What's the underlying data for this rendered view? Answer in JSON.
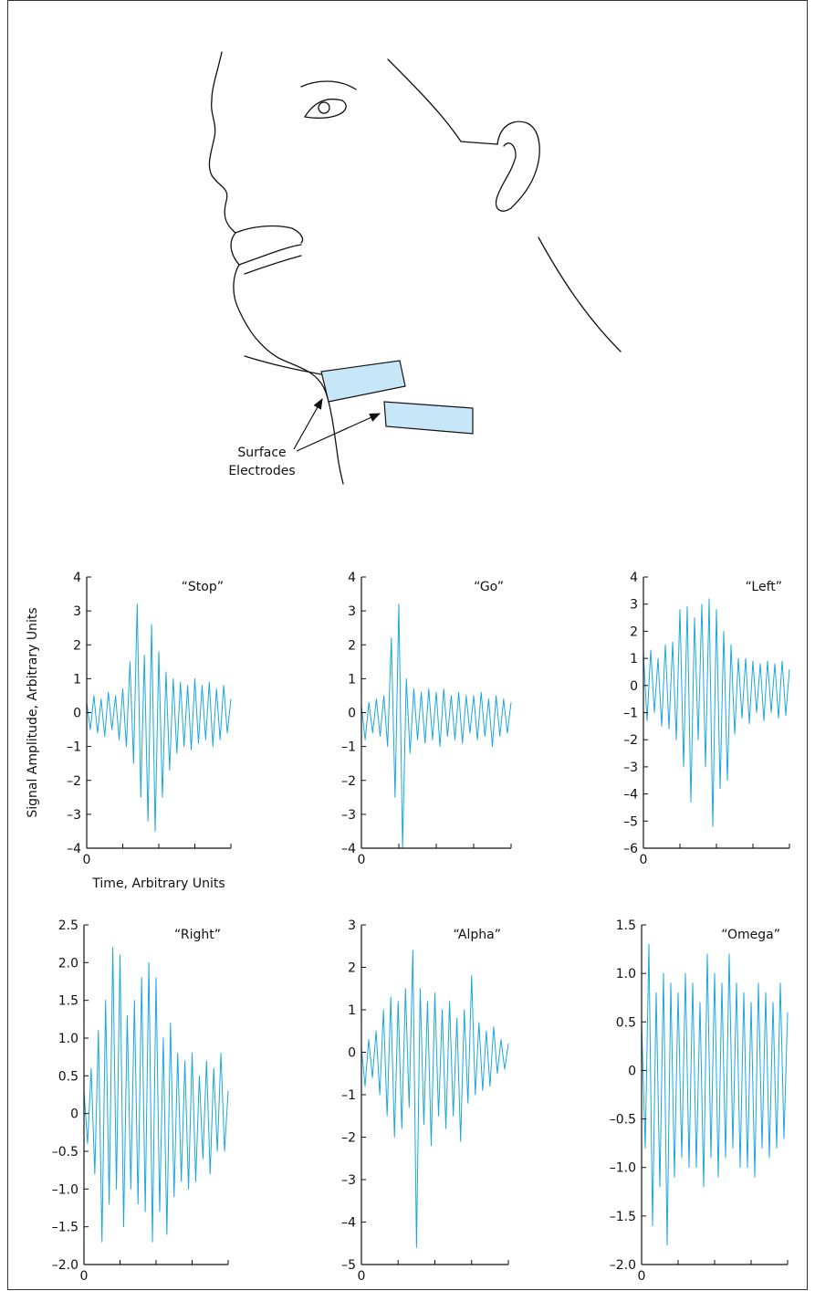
{
  "diagram": {
    "label_lines": [
      "Surface",
      "Electrodes"
    ]
  },
  "chart_data": [
    {
      "type": "line",
      "title": "“Stop”",
      "ylabel": "Signal Amplitude, Arbitrary Units",
      "xlabel": "Time, Arbitrary Units",
      "color": "#1aa7e0",
      "xlim": [
        0,
        4
      ],
      "xticks": [
        0,
        {
          "value": 1,
          "label": null
        },
        {
          "value": 2,
          "label": null
        },
        {
          "value": 3,
          "label": null
        },
        {
          "value": 4,
          "label": null
        }
      ],
      "ylim": [
        -4,
        4
      ],
      "yticks": [
        {
          "value": -4,
          "label": "–4"
        },
        {
          "value": -3,
          "label": "–3"
        },
        {
          "value": -2,
          "label": "–2"
        },
        {
          "value": -1,
          "label": "–1"
        },
        0,
        1,
        2,
        3,
        4
      ],
      "x": [
        0,
        0.1,
        0.2,
        0.3,
        0.4,
        0.5,
        0.6,
        0.7,
        0.8,
        0.9,
        1,
        1.1,
        1.2,
        1.3,
        1.4,
        1.5,
        1.6,
        1.7,
        1.8,
        1.9,
        2,
        2.1,
        2.2,
        2.3,
        2.4,
        2.5,
        2.6,
        2.7,
        2.8,
        2.9,
        3,
        3.1,
        3.2,
        3.3,
        3.4,
        3.5,
        3.6,
        3.7,
        3.8,
        3.9,
        4
      ],
      "values": [
        0.3,
        -0.5,
        0.5,
        -0.6,
        0.4,
        -0.7,
        0.6,
        -0.5,
        0.5,
        -0.8,
        0.7,
        -1.0,
        1.5,
        -1.5,
        3.2,
        -2.5,
        1.7,
        -3.2,
        2.6,
        -3.5,
        1.8,
        -2.5,
        1.2,
        -1.7,
        1.0,
        -1.2,
        0.9,
        -1.0,
        0.8,
        -1.1,
        1.0,
        -0.9,
        0.8,
        -0.8,
        0.9,
        -1.0,
        0.7,
        -0.8,
        0.8,
        -0.6,
        0.4
      ]
    },
    {
      "type": "line",
      "title": "“Go”",
      "color": "#1aa7e0",
      "xlim": [
        0,
        4
      ],
      "xticks": [
        0,
        {
          "value": 1,
          "label": null
        },
        {
          "value": 2,
          "label": null
        },
        {
          "value": 3,
          "label": null
        },
        {
          "value": 4,
          "label": null
        }
      ],
      "ylim": [
        -4,
        4
      ],
      "yticks": [
        {
          "value": -4,
          "label": "–4"
        },
        {
          "value": -3,
          "label": "–3"
        },
        {
          "value": -2,
          "label": "–2"
        },
        {
          "value": -1,
          "label": "–1"
        },
        0,
        1,
        2,
        3,
        4
      ],
      "x": [
        0,
        0.1,
        0.2,
        0.3,
        0.4,
        0.5,
        0.6,
        0.7,
        0.8,
        0.9,
        1,
        1.1,
        1.2,
        1.3,
        1.4,
        1.5,
        1.6,
        1.7,
        1.8,
        1.9,
        2,
        2.1,
        2.2,
        2.3,
        2.4,
        2.5,
        2.6,
        2.7,
        2.8,
        2.9,
        3,
        3.1,
        3.2,
        3.3,
        3.4,
        3.5,
        3.6,
        3.7,
        3.8,
        3.9,
        4
      ],
      "values": [
        0.2,
        -0.8,
        0.3,
        -0.6,
        0.4,
        -0.7,
        0.5,
        -1.0,
        2.2,
        -2.5,
        3.2,
        -4.0,
        1.0,
        -1.2,
        0.7,
        -0.8,
        0.6,
        -0.9,
        0.7,
        -0.8,
        0.6,
        -1.0,
        0.7,
        -0.7,
        0.5,
        -0.8,
        0.6,
        -0.9,
        0.5,
        -0.6,
        0.5,
        -0.8,
        0.6,
        -0.7,
        0.4,
        -1.0,
        0.5,
        -0.7,
        0.4,
        -0.6,
        0.3
      ]
    },
    {
      "type": "line",
      "title": "“Left”",
      "color": "#1aa7e0",
      "xlim": [
        0,
        4
      ],
      "xticks": [
        0,
        {
          "value": 1,
          "label": null
        },
        {
          "value": 2,
          "label": null
        },
        {
          "value": 3,
          "label": null
        },
        {
          "value": 4,
          "label": null
        }
      ],
      "ylim": [
        -6,
        4
      ],
      "yticks": [
        {
          "value": -6,
          "label": "–6"
        },
        {
          "value": -5,
          "label": "–5"
        },
        {
          "value": -4,
          "label": "–4"
        },
        {
          "value": -3,
          "label": "–3"
        },
        {
          "value": -2,
          "label": "–2"
        },
        {
          "value": -1,
          "label": "–1"
        },
        0,
        1,
        2,
        3,
        4
      ],
      "x": [
        0,
        0.1,
        0.2,
        0.3,
        0.4,
        0.5,
        0.6,
        0.7,
        0.8,
        0.9,
        1,
        1.1,
        1.2,
        1.3,
        1.4,
        1.5,
        1.6,
        1.7,
        1.8,
        1.9,
        2,
        2.1,
        2.2,
        2.3,
        2.4,
        2.5,
        2.6,
        2.7,
        2.8,
        2.9,
        3,
        3.1,
        3.2,
        3.3,
        3.4,
        3.5,
        3.6,
        3.7,
        3.8,
        3.9,
        4
      ],
      "values": [
        1.2,
        -1.3,
        1.3,
        -1.0,
        1.0,
        -1.5,
        1.5,
        -1.6,
        1.6,
        -2.0,
        2.8,
        -3.0,
        2.9,
        -4.3,
        2.5,
        -2.0,
        3.0,
        -3.0,
        3.2,
        -5.2,
        2.8,
        -3.8,
        2.0,
        -3.5,
        1.5,
        -1.8,
        1.0,
        -1.2,
        1.0,
        -1.4,
        0.9,
        -1.0,
        0.8,
        -1.3,
        0.9,
        -1.0,
        0.8,
        -1.2,
        0.9,
        -1.1,
        0.6
      ]
    },
    {
      "type": "line",
      "title": "“Right”",
      "color": "#1aa7e0",
      "xlim": [
        0,
        4
      ],
      "xticks": [
        0,
        {
          "value": 1,
          "label": null
        },
        {
          "value": 2,
          "label": null
        },
        {
          "value": 3,
          "label": null
        },
        {
          "value": 4,
          "label": null
        }
      ],
      "ylim": [
        -2,
        2.5
      ],
      "yticks": [
        {
          "value": -2,
          "label": "–2.0"
        },
        {
          "value": -1.5,
          "label": "–1.5"
        },
        {
          "value": -1,
          "label": "–1.0"
        },
        {
          "value": -0.5,
          "label": "–0.5"
        },
        0,
        0.5,
        {
          "value": 1,
          "label": "1.0"
        },
        1.5,
        {
          "value": 2,
          "label": "2.0"
        },
        2.5
      ],
      "x": [
        0,
        0.1,
        0.2,
        0.3,
        0.4,
        0.5,
        0.6,
        0.7,
        0.8,
        0.9,
        1,
        1.1,
        1.2,
        1.3,
        1.4,
        1.5,
        1.6,
        1.7,
        1.8,
        1.9,
        2,
        2.1,
        2.2,
        2.3,
        2.4,
        2.5,
        2.6,
        2.7,
        2.8,
        2.9,
        3,
        3.1,
        3.2,
        3.3,
        3.4,
        3.5,
        3.6,
        3.7,
        3.8,
        3.9,
        4
      ],
      "values": [
        0.3,
        -0.4,
        0.6,
        -0.8,
        1.1,
        -1.7,
        1.5,
        -1.2,
        2.2,
        -1.0,
        2.1,
        -1.5,
        1.3,
        -1.0,
        1.5,
        -1.2,
        1.8,
        -1.3,
        2.0,
        -1.7,
        1.8,
        -1.3,
        1.0,
        -1.6,
        1.2,
        -1.1,
        0.8,
        -0.9,
        0.7,
        -1.0,
        0.8,
        -0.9,
        0.5,
        -0.6,
        0.7,
        -0.8,
        0.6,
        -0.5,
        0.8,
        -0.5,
        0.3
      ]
    },
    {
      "type": "line",
      "title": "“Alpha”",
      "color": "#1aa7e0",
      "xlim": [
        0,
        4
      ],
      "xticks": [
        0,
        {
          "value": 1,
          "label": null
        },
        {
          "value": 2,
          "label": null
        },
        {
          "value": 3,
          "label": null
        },
        {
          "value": 4,
          "label": null
        }
      ],
      "ylim": [
        -5,
        3
      ],
      "yticks": [
        {
          "value": -5,
          "label": "–5"
        },
        {
          "value": -4,
          "label": "–4"
        },
        {
          "value": -3,
          "label": "–3"
        },
        {
          "value": -2,
          "label": "–2"
        },
        {
          "value": -1,
          "label": "–1"
        },
        0,
        1,
        2,
        3
      ],
      "x": [
        0,
        0.1,
        0.2,
        0.3,
        0.4,
        0.5,
        0.6,
        0.7,
        0.8,
        0.9,
        1,
        1.1,
        1.2,
        1.3,
        1.4,
        1.5,
        1.6,
        1.7,
        1.8,
        1.9,
        2,
        2.1,
        2.2,
        2.3,
        2.4,
        2.5,
        2.6,
        2.7,
        2.8,
        2.9,
        3,
        3.1,
        3.2,
        3.3,
        3.4,
        3.5,
        3.6,
        3.7,
        3.8,
        3.9,
        4
      ],
      "values": [
        0.1,
        -0.8,
        0.3,
        -0.6,
        0.5,
        -1.0,
        1.0,
        -1.5,
        1.3,
        -2.0,
        1.2,
        -1.8,
        1.5,
        -1.3,
        2.4,
        -4.6,
        1.5,
        -1.7,
        1.2,
        -2.2,
        1.4,
        -1.5,
        1.0,
        -1.8,
        1.2,
        -1.5,
        0.8,
        -2.1,
        1.0,
        -1.2,
        1.8,
        -1.0,
        0.7,
        -0.9,
        0.5,
        -0.8,
        0.6,
        -0.5,
        0.3,
        -0.4,
        0.2
      ]
    },
    {
      "type": "line",
      "title": "“Omega”",
      "color": "#1aa7e0",
      "xlim": [
        0,
        4
      ],
      "xticks": [
        0,
        {
          "value": 1,
          "label": null
        },
        {
          "value": 2,
          "label": null
        },
        {
          "value": 3,
          "label": null
        },
        {
          "value": 4,
          "label": null
        }
      ],
      "ylim": [
        -2,
        1.5
      ],
      "yticks": [
        {
          "value": -2,
          "label": "–2.0"
        },
        {
          "value": -1.5,
          "label": "–1.5"
        },
        {
          "value": -1,
          "label": "–1.0"
        },
        {
          "value": -0.5,
          "label": "–0.5"
        },
        0,
        0.5,
        {
          "value": 1,
          "label": "1.0"
        },
        1.5
      ],
      "x": [
        0,
        0.1,
        0.2,
        0.3,
        0.4,
        0.5,
        0.6,
        0.7,
        0.8,
        0.9,
        1,
        1.1,
        1.2,
        1.3,
        1.4,
        1.5,
        1.6,
        1.7,
        1.8,
        1.9,
        2,
        2.1,
        2.2,
        2.3,
        2.4,
        2.5,
        2.6,
        2.7,
        2.8,
        2.9,
        3,
        3.1,
        3.2,
        3.3,
        3.4,
        3.5,
        3.6,
        3.7,
        3.8,
        3.9,
        4
      ],
      "values": [
        0.5,
        -0.8,
        1.3,
        -1.6,
        0.8,
        -1.2,
        1.0,
        -1.8,
        0.9,
        -1.1,
        0.8,
        -0.9,
        1.0,
        -1.0,
        0.9,
        -1.0,
        0.7,
        -1.2,
        1.2,
        -0.9,
        1.0,
        -1.1,
        0.9,
        -0.9,
        1.2,
        -0.8,
        0.9,
        -1.0,
        0.8,
        -1.0,
        0.7,
        -1.1,
        0.9,
        -0.8,
        0.8,
        -0.9,
        0.7,
        -0.8,
        0.9,
        -0.7,
        0.6
      ]
    }
  ]
}
